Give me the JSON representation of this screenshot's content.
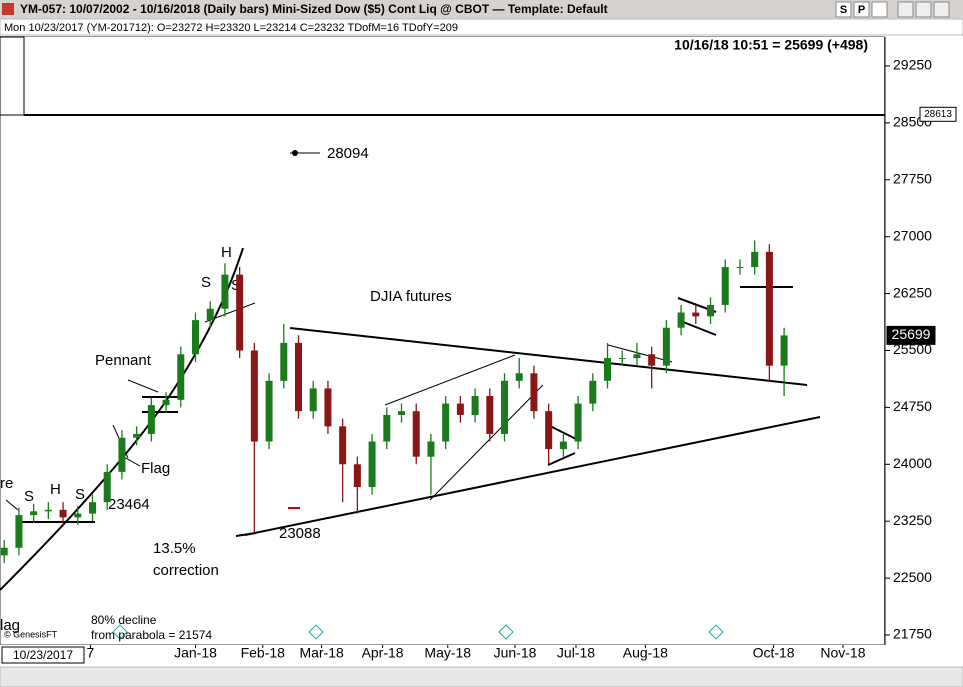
{
  "header": {
    "title_bar": "YM-057:  10/07/2002 - 10/16/2018  (Daily bars)   Mini-Sized Dow ($5) Cont Liq @ CBOT  —  Template: Default",
    "buttons": [
      "S",
      "P"
    ],
    "info_line": "Mon   10/23/2017 (YM-201712):  O=23272  H=23320  L=23214  C=23232  TDofM=16  TDofY=209",
    "cursor_date": "10/23/2017"
  },
  "chart_data": {
    "type": "candlestick",
    "title": "10/16/18 10:51 = 25699 (+498)",
    "x": [
      2,
      9,
      16,
      23,
      30,
      37,
      44,
      51,
      58,
      65,
      72,
      79,
      86,
      93,
      100,
      107,
      114,
      121,
      128,
      135,
      142,
      149,
      156,
      163,
      170,
      177,
      184,
      191,
      198,
      205,
      212,
      219,
      226,
      233,
      240,
      247,
      254,
      261,
      268,
      275,
      282,
      289,
      296,
      303,
      310,
      317,
      324,
      331,
      338,
      345,
      352,
      359,
      366,
      373
    ],
    "open": [
      22800,
      22900,
      23330,
      23380,
      23400,
      23300,
      23350,
      23500,
      23900,
      24350,
      24400,
      24780,
      24850,
      25450,
      25900,
      26050,
      26500,
      25500,
      24300,
      25100,
      25600,
      24700,
      25000,
      24500,
      24000,
      23700,
      24300,
      24650,
      24700,
      24100,
      24300,
      24800,
      24650,
      24900,
      24400,
      25100,
      25200,
      24700,
      24200,
      24300,
      24800,
      25100,
      25400,
      25400,
      25450,
      25300,
      25800,
      26000,
      25950,
      26100,
      26600,
      26600,
      26800,
      25300
    ],
    "high": [
      23000,
      23430,
      23480,
      23500,
      23500,
      23450,
      23600,
      24000,
      24450,
      24500,
      24880,
      24950,
      25550,
      26000,
      26150,
      26650,
      26600,
      25600,
      25200,
      25850,
      25700,
      25100,
      25100,
      24600,
      24100,
      24400,
      24750,
      24800,
      24800,
      24400,
      24900,
      24900,
      25000,
      25000,
      25200,
      25400,
      25300,
      24800,
      24400,
      24900,
      25200,
      25600,
      25500,
      25600,
      25550,
      25900,
      26100,
      26100,
      26200,
      26700,
      26700,
      26951,
      26900,
      25800
    ],
    "low": [
      22700,
      22800,
      23230,
      23280,
      23200,
      23200,
      23250,
      23400,
      23800,
      24250,
      24300,
      24680,
      24750,
      25350,
      25800,
      25950,
      25400,
      23088,
      24200,
      25000,
      24600,
      24600,
      24400,
      23500,
      23350,
      23600,
      24200,
      24550,
      24000,
      23600,
      24200,
      24550,
      24550,
      24300,
      24300,
      25000,
      24600,
      24000,
      24100,
      24200,
      24700,
      25000,
      25300,
      25300,
      25000,
      25200,
      25700,
      25850,
      25850,
      26000,
      26500,
      26500,
      25100,
      24900
    ],
    "close": [
      22900,
      23330,
      23380,
      23400,
      23300,
      23350,
      23500,
      23900,
      24350,
      24400,
      24780,
      24850,
      25450,
      25900,
      26050,
      26500,
      25500,
      24300,
      25100,
      25600,
      24700,
      25000,
      24500,
      24000,
      23700,
      24300,
      24650,
      24700,
      24100,
      24300,
      24800,
      24650,
      24900,
      24400,
      25100,
      25200,
      24700,
      24200,
      24300,
      24800,
      25100,
      25400,
      25400,
      25450,
      25300,
      25800,
      26000,
      25950,
      26100,
      26600,
      26600,
      26800,
      25300,
      25699
    ],
    "up_color": "#1b7a1b",
    "down_color": "#8b1616",
    "xlim": [
      0,
      421
    ],
    "xticks": [
      {
        "value": 43,
        "label": "7"
      },
      {
        "value": 93,
        "label": "Jan-18"
      },
      {
        "value": 125,
        "label": "Feb-18"
      },
      {
        "value": 153,
        "label": "Mar-18"
      },
      {
        "value": 182,
        "label": "Apr-18"
      },
      {
        "value": 213,
        "label": "May-18"
      },
      {
        "value": 245,
        "label": "Jun-18"
      },
      {
        "value": 274,
        "label": "Jul-18"
      },
      {
        "value": 307,
        "label": "Aug-18"
      },
      {
        "value": 368,
        "label": "Oct-18"
      },
      {
        "value": 401,
        "label": "Nov-18"
      }
    ],
    "ylim": [
      21618,
      29632
    ],
    "yticks": [
      21750,
      22500,
      23250,
      24000,
      24750,
      25500,
      26250,
      27000,
      27750,
      28500,
      29250
    ],
    "price_labels": [
      28613,
      25699
    ],
    "annotations": [
      "DJIA futures",
      "Pennant",
      "Flag",
      "S",
      "H",
      "S",
      "S",
      "H",
      "S",
      "23464",
      "23088",
      "13.5%",
      "correction",
      "28094",
      "re",
      "lag",
      "80% decline",
      "from parabola = 21574",
      "© GenesisFT"
    ]
  }
}
